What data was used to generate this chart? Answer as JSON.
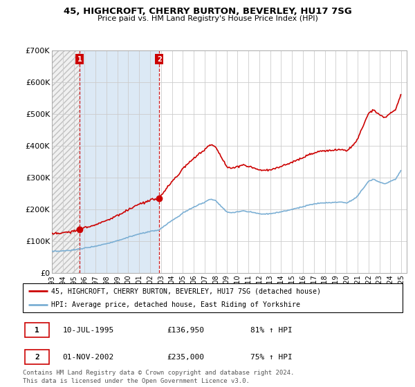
{
  "title": "45, HIGHCROFT, CHERRY BURTON, BEVERLEY, HU17 7SG",
  "subtitle": "Price paid vs. HM Land Registry's House Price Index (HPI)",
  "ylim": [
    0,
    700000
  ],
  "yticks": [
    0,
    100000,
    200000,
    300000,
    400000,
    500000,
    600000,
    700000
  ],
  "ytick_labels": [
    "£0",
    "£100K",
    "£200K",
    "£300K",
    "£400K",
    "£500K",
    "£600K",
    "£700K"
  ],
  "sale1_date": "10-JUL-1995",
  "sale1_price": 136950,
  "sale1_label": "£136,950",
  "sale1_pct": "81% ↑ HPI",
  "sale1_x": 1995.542,
  "sale2_date": "01-NOV-2002",
  "sale2_price": 235000,
  "sale2_label": "£235,000",
  "sale2_pct": "75% ↑ HPI",
  "sale2_x": 2002.833,
  "xlim_start": 1993.0,
  "xlim_end": 2025.5,
  "legend_label1": "45, HIGHCROFT, CHERRY BURTON, BEVERLEY, HU17 7SG (detached house)",
  "legend_label2": "HPI: Average price, detached house, East Riding of Yorkshire",
  "footer": "Contains HM Land Registry data © Crown copyright and database right 2024.\nThis data is licensed under the Open Government Licence v3.0.",
  "property_color": "#cc0000",
  "hpi_color": "#7bafd4",
  "hatch_color": "#d8d8d8",
  "shade_color": "#dce9f5"
}
